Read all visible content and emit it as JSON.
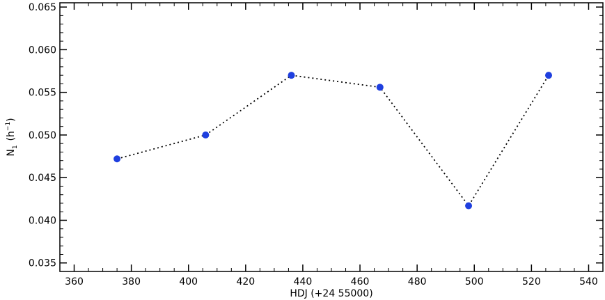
{
  "chart_data": {
    "type": "scatter",
    "connect_points": true,
    "line_style": "dotted",
    "marker_color": "#1f3fdf",
    "line_color": "#000000",
    "xlabel": "HDJ (+24 55000)",
    "ylabel_main": "N",
    "ylabel_sub": "1",
    "ylabel_unit": "(h",
    "ylabel_sup": "−1",
    "ylabel_close": ")",
    "xlim": [
      355,
      545
    ],
    "ylim": [
      0.034,
      0.0655
    ],
    "x_ticks": [
      "360",
      "380",
      "400",
      "420",
      "440",
      "460",
      "480",
      "500",
      "520",
      "540"
    ],
    "y_ticks": [
      "0.035",
      "0.040",
      "0.045",
      "0.050",
      "0.055",
      "0.060",
      "0.065"
    ],
    "grid": false,
    "x": [
      375,
      406,
      436,
      467,
      498,
      526
    ],
    "y": [
      0.0472,
      0.05,
      0.057,
      0.0556,
      0.0417,
      0.057
    ]
  }
}
